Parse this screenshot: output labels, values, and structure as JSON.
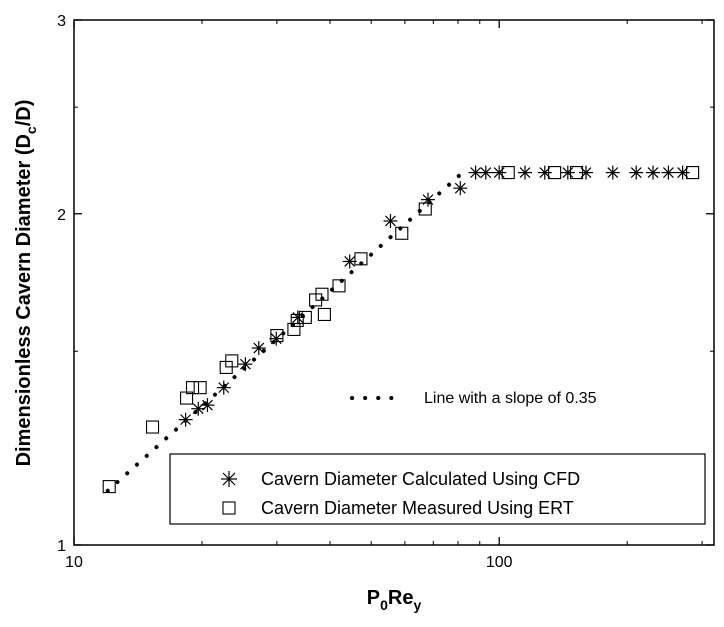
{
  "chart_data": {
    "type": "scatter",
    "xscale": "log",
    "yscale": "log",
    "xlim": [
      10,
      320
    ],
    "ylim": [
      1,
      3
    ],
    "xticks": [
      {
        "value": 10,
        "label": "10"
      },
      {
        "value": 100,
        "label": "100"
      }
    ],
    "yticks": [
      {
        "value": 1,
        "label": "1"
      },
      {
        "value": 2,
        "label": "2"
      },
      {
        "value": 3,
        "label": "3"
      }
    ],
    "xlabel": {
      "base1": "P",
      "sub1": "0",
      "base2": "Re",
      "sub2": "y"
    },
    "ylabel": {
      "base": "Dimensionless Cavern Diameter (D",
      "sub": "c",
      "tail": "/D)"
    },
    "grid": false,
    "legend": {
      "placement": "bottom-right",
      "entries": [
        {
          "marker": "asterisk",
          "label": "Cavern Diameter Calculated Using CFD"
        },
        {
          "marker": "square",
          "label": "Cavern Diameter Measured Using ERT"
        }
      ]
    },
    "annotation": {
      "label": "Line with a slope of 0.35"
    },
    "series": [
      {
        "name": "Cavern Diameter Calculated Using CFD",
        "marker": "asterisk",
        "x": [
          18.3,
          19.6,
          20.6,
          22.5,
          25.3,
          27.2,
          29.9,
          33.6,
          44.5,
          55.5,
          68,
          81,
          88,
          93,
          100,
          115,
          128,
          145,
          160,
          185,
          210,
          230,
          250,
          270
        ],
        "y": [
          1.3,
          1.33,
          1.34,
          1.39,
          1.46,
          1.51,
          1.54,
          1.61,
          1.81,
          1.97,
          2.06,
          2.11,
          2.18,
          2.18,
          2.18,
          2.18,
          2.18,
          2.18,
          2.18,
          2.18,
          2.18,
          2.18,
          2.18,
          2.18
        ]
      },
      {
        "name": "Cavern Diameter Measured Using ERT",
        "marker": "square",
        "x": [
          12.1,
          15.3,
          18.4,
          19.0,
          19.8,
          22.8,
          23.5,
          30.0,
          32.9,
          33.5,
          35.0,
          37.0,
          38.3,
          38.8,
          42.0,
          47.3,
          59.0,
          67.0,
          105,
          135,
          152,
          285
        ],
        "y": [
          1.13,
          1.28,
          1.36,
          1.39,
          1.39,
          1.45,
          1.47,
          1.55,
          1.57,
          1.6,
          1.61,
          1.67,
          1.69,
          1.62,
          1.72,
          1.82,
          1.92,
          2.02,
          2.18,
          2.18,
          2.18,
          2.18
        ]
      }
    ],
    "trend_line": {
      "slope": 0.35,
      "x": [
        12,
        82
      ],
      "y": [
        1.12,
        2.18
      ]
    }
  }
}
